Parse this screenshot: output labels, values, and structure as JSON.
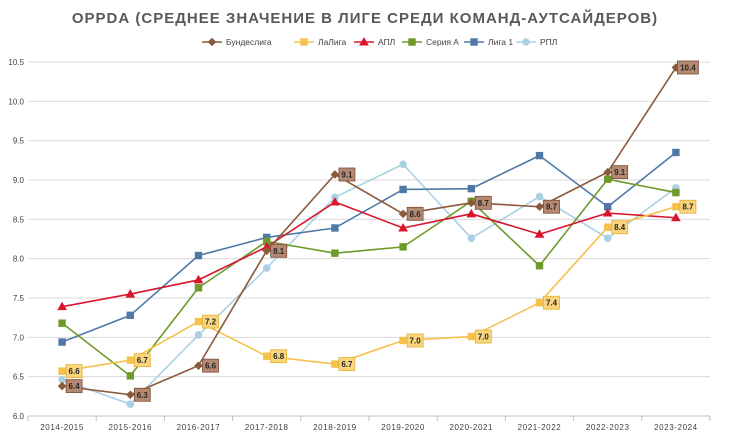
{
  "chart_data": {
    "type": "line",
    "title": "ОРРDА (СРЕДНЕЕ ЗНАЧЕНИЕ В ЛИГЕ СРЕДИ КОМАНД-АУТСАЙДЕРОВ)",
    "xlabel": "",
    "ylabel": "",
    "categories": [
      "2014-2015",
      "2015-2016",
      "2016-2017",
      "2017-2018",
      "2018-2019",
      "2019-2020",
      "2020-2021",
      "2021-2022",
      "2022-2023",
      "2023-2024"
    ],
    "ylim": [
      6.0,
      10.5
    ],
    "yticks": [
      "6.0",
      "6.5",
      "7.0",
      "7.5",
      "8.0",
      "8.5",
      "9.0",
      "9.5",
      "10.0",
      "10.5"
    ],
    "grid": "horizontal",
    "legend_position": "top",
    "series": [
      {
        "name": "Бундеслига",
        "color": "#8B5A3C",
        "marker": "diamond",
        "values": [
          6.38,
          6.27,
          6.64,
          8.1,
          9.07,
          8.57,
          8.71,
          8.66,
          9.1,
          10.43
        ],
        "labeled": [
          0,
          1,
          2,
          3,
          4,
          5,
          6,
          7,
          8,
          9
        ],
        "labels": [
          "6.4",
          "6.3",
          "6.6",
          "8.1",
          "9.1",
          "8.6",
          "8.7",
          "8.7",
          "9.1",
          "10.4"
        ],
        "label_bg": "#B58971",
        "label_border": "#7A4E35"
      },
      {
        "name": "ЛаЛига",
        "color": "#F6C04C",
        "marker": "square",
        "values": [
          6.57,
          6.71,
          7.2,
          6.76,
          6.66,
          6.96,
          7.01,
          7.44,
          8.4,
          8.66
        ],
        "labeled": [
          0,
          1,
          2,
          3,
          4,
          5,
          6,
          7,
          8,
          9
        ],
        "labels": [
          "6.6",
          "6.7",
          "7.2",
          "6.8",
          "6.7",
          "7.0",
          "7.0",
          "7.4",
          "8.4",
          "8.7"
        ],
        "label_bg": "#F8D57E",
        "label_border": "#E8AE2C"
      },
      {
        "name": "АПЛ",
        "color": "#D9152D",
        "marker": "triangle",
        "values": [
          7.39,
          7.55,
          7.73,
          8.15,
          8.72,
          8.39,
          8.57,
          8.31,
          8.58,
          8.52
        ],
        "labeled": [],
        "labels": []
      },
      {
        "name": "Серия А",
        "color": "#6F9A2A",
        "marker": "square",
        "values": [
          7.18,
          6.51,
          7.63,
          8.22,
          8.07,
          8.15,
          8.73,
          7.91,
          9.01,
          8.84
        ],
        "labeled": [],
        "labels": []
      },
      {
        "name": "Лига 1",
        "color": "#4E79A7",
        "marker": "square",
        "values": [
          6.94,
          7.28,
          8.04,
          8.27,
          8.39,
          8.88,
          8.89,
          9.31,
          8.66,
          9.35
        ],
        "labeled": [],
        "labels": []
      },
      {
        "name": "РПЛ",
        "color": "#A9D1E3",
        "marker": "circle",
        "values": [
          6.46,
          6.15,
          7.03,
          7.88,
          8.78,
          9.2,
          8.26,
          8.79,
          8.26,
          8.9
        ],
        "labeled": [],
        "labels": []
      }
    ]
  }
}
